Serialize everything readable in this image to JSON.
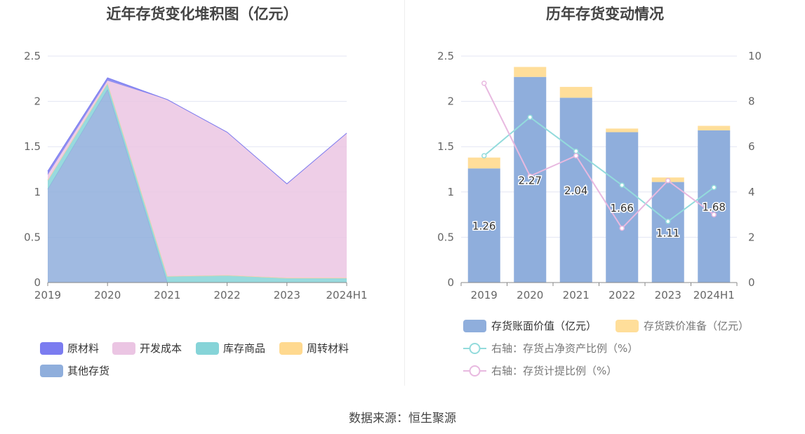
{
  "source": "数据来源：恒生聚源",
  "chart_data": [
    {
      "type": "area",
      "title": "近年存货变化堆积图（亿元）",
      "categories": [
        "2019",
        "2020",
        "2021",
        "2022",
        "2023",
        "2024H1"
      ],
      "ylim": [
        0,
        2.5
      ],
      "yticks": [
        "0",
        "0.5",
        "1",
        "1.5",
        "2",
        "2.5"
      ],
      "stacked": true,
      "series": [
        {
          "name": "其他存货",
          "color": "#8FAEDC",
          "values": [
            1.03,
            2.13,
            0.0,
            0.0,
            0.0,
            0.0
          ]
        },
        {
          "name": "库存商品",
          "color": "#86D4D8",
          "values": [
            0.1,
            0.07,
            0.07,
            0.08,
            0.05,
            0.05
          ]
        },
        {
          "name": "周转材料",
          "color": "#FFD98F",
          "values": [
            0.0,
            0.0,
            0.0,
            0.0,
            0.0,
            0.0
          ]
        },
        {
          "name": "开发成本",
          "color": "#EBC5E3",
          "values": [
            0.06,
            0.03,
            1.95,
            1.58,
            1.04,
            1.6
          ]
        },
        {
          "name": "原材料",
          "color": "#7B7CF0",
          "values": [
            0.04,
            0.03,
            0.0,
            0.0,
            0.0,
            0.0
          ]
        }
      ],
      "legend": [
        "原材料",
        "开发成本",
        "库存商品",
        "周转材料",
        "其他存货"
      ],
      "legend_position": "bottom"
    },
    {
      "type": "bar",
      "title": "历年存货变动情况",
      "categories": [
        "2019",
        "2020",
        "2021",
        "2022",
        "2023",
        "2024H1"
      ],
      "ylim": [
        0,
        2.5
      ],
      "yticks": [
        "0",
        "0.5",
        "1",
        "1.5",
        "2",
        "2.5"
      ],
      "y2lim": [
        0,
        10
      ],
      "y2ticks": [
        "0",
        "2",
        "4",
        "6",
        "8",
        "10"
      ],
      "series": [
        {
          "name": "存货账面价值（亿元）",
          "type": "bar",
          "stack": true,
          "color": "#8FAEDC",
          "values": [
            1.26,
            2.27,
            2.04,
            1.66,
            1.11,
            1.68
          ],
          "labels": [
            "1.26",
            "2.27",
            "2.04",
            "1.66",
            "1.11",
            "1.68"
          ]
        },
        {
          "name": "存货跌价准备（亿元）",
          "type": "bar",
          "stack": true,
          "color": "#FFDE9A",
          "values": [
            0.12,
            0.11,
            0.12,
            0.04,
            0.05,
            0.05
          ]
        },
        {
          "name": "右轴：存货占净资产比例（%）",
          "type": "line",
          "axis": "right",
          "color": "#93DBDC",
          "values": [
            5.6,
            7.3,
            5.8,
            4.3,
            2.7,
            4.2
          ]
        },
        {
          "name": "右轴：存货计提比例（%）",
          "type": "line",
          "axis": "right",
          "color": "#E8B9E0",
          "values": [
            8.8,
            4.7,
            5.6,
            2.4,
            4.5,
            3.0
          ]
        }
      ],
      "legend_position": "bottom"
    }
  ]
}
